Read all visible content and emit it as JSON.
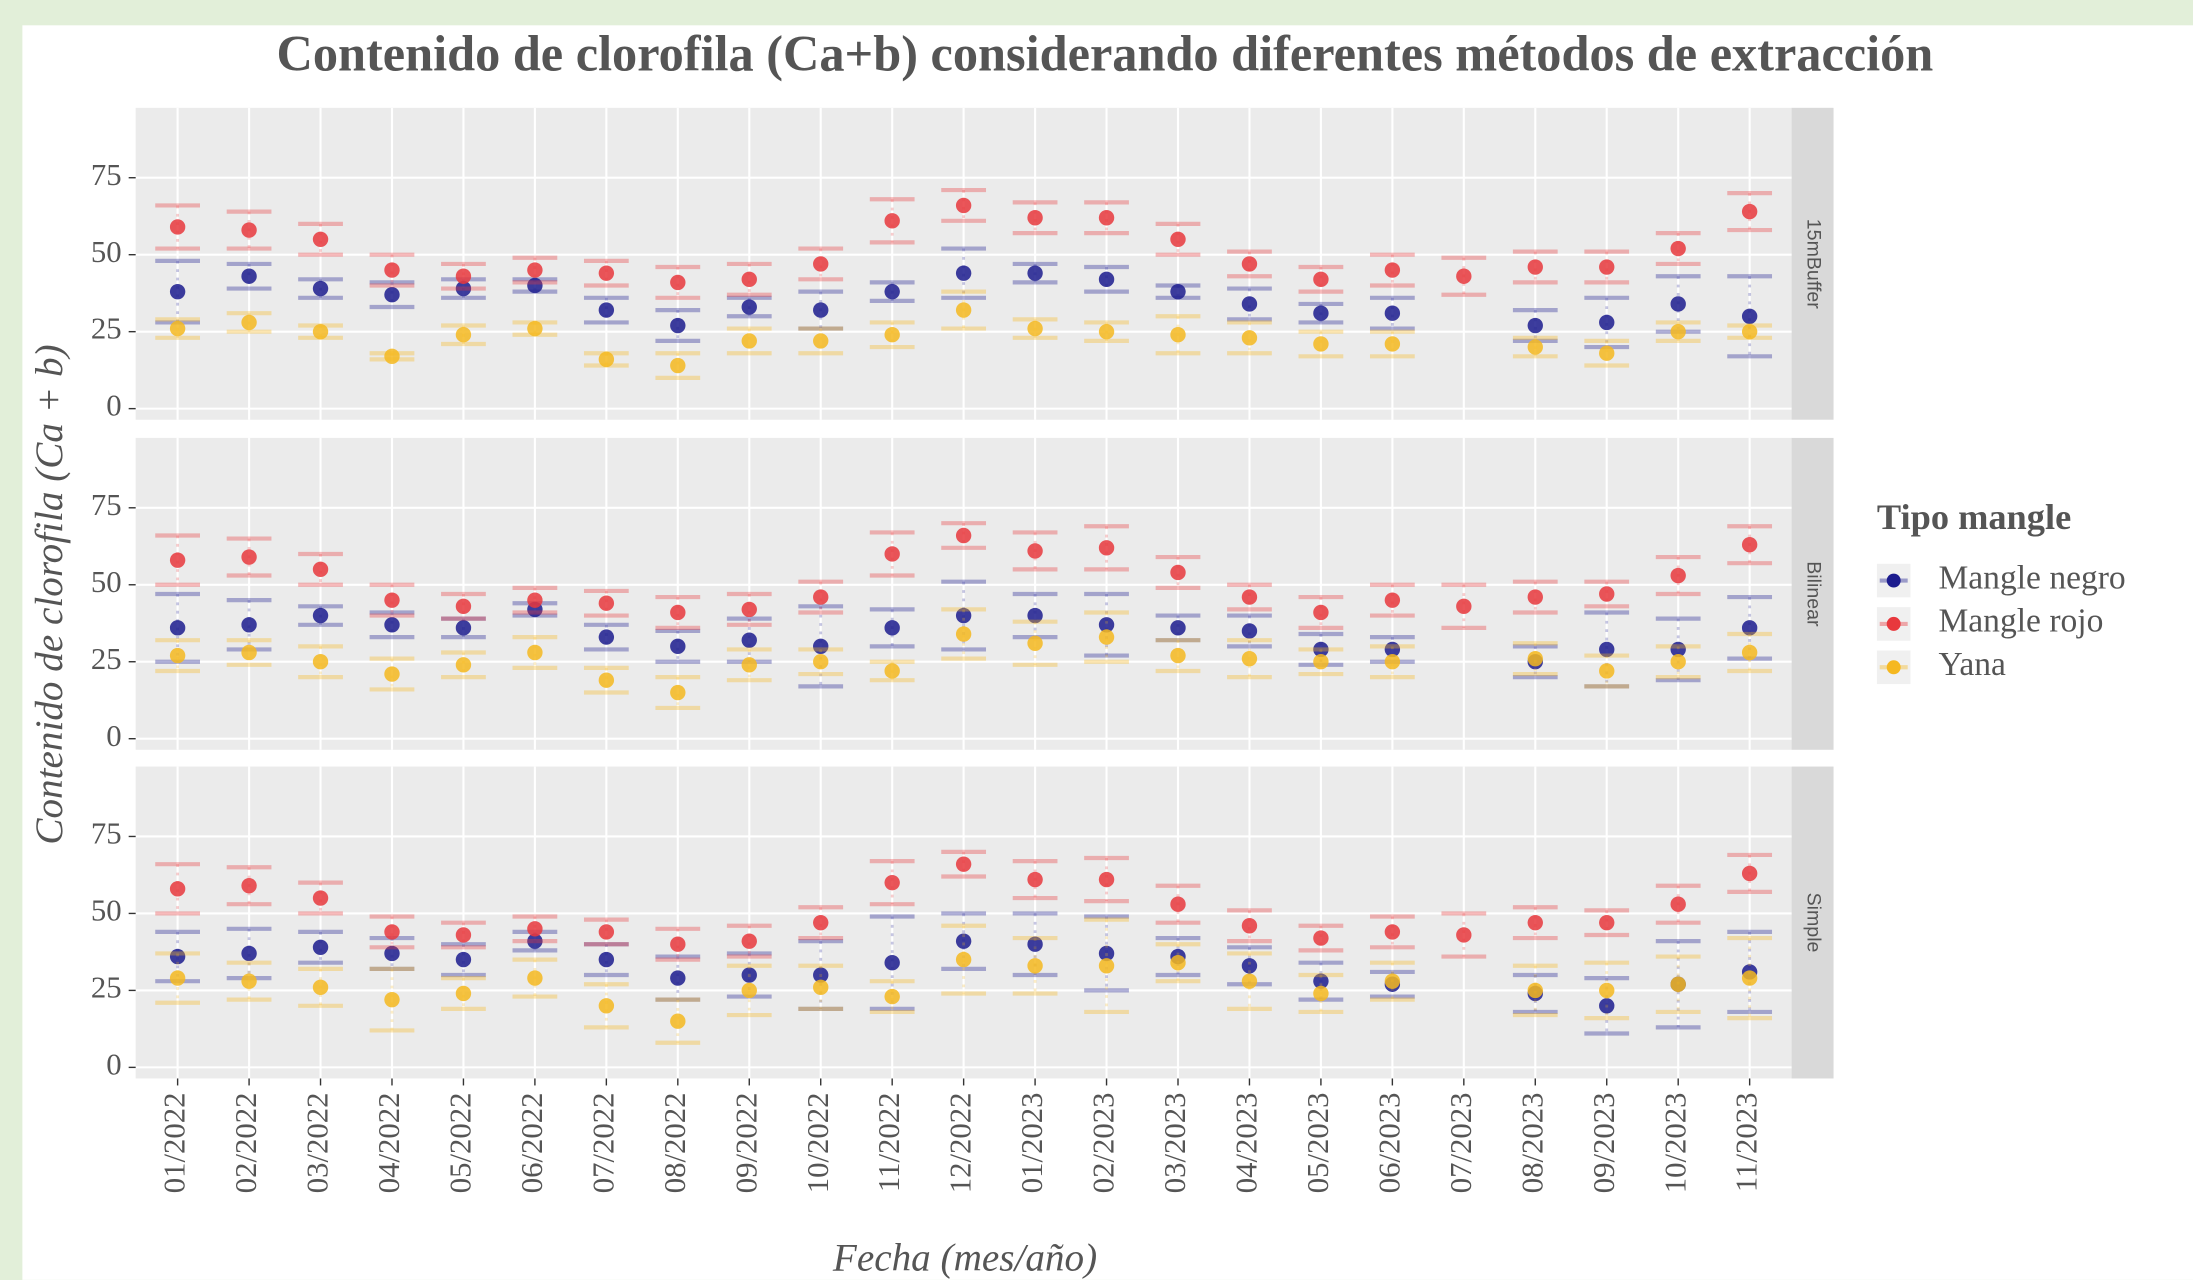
{
  "chart_data": {
    "type": "point",
    "title": "Contenido de clorofila (Ca+b) considerando diferentes métodos de extracción",
    "y_label": "Contenido de clorofila (Ca + b)",
    "x_label": "Fecha (mes/año)",
    "legend_title": "Tipo mangle",
    "categories": [
      "01/2022",
      "02/2022",
      "03/2022",
      "04/2022",
      "05/2022",
      "06/2022",
      "07/2022",
      "08/2022",
      "09/2022",
      "10/2022",
      "11/2022",
      "12/2022",
      "01/2023",
      "02/2023",
      "03/2023",
      "04/2023",
      "05/2023",
      "06/2023",
      "07/2023",
      "08/2023",
      "09/2023",
      "10/2023",
      "11/2023"
    ],
    "ylim": [
      -3.6,
      97.7
    ],
    "yticks": [
      0,
      25,
      50,
      75
    ],
    "grid": true,
    "panels": [
      {
        "label": "15mBuffer",
        "series": [
          {
            "name": "Mangle negro",
            "color": "#1c1c8e",
            "values": [
              38,
              43,
              39,
              37,
              39,
              40,
              32,
              27,
              33,
              32,
              38,
              44,
              44,
              42,
              38,
              34,
              31,
              31,
              null,
              27,
              28,
              34,
              30
            ],
            "errors": [
              10,
              4,
              3,
              4,
              3,
              2,
              4,
              5,
              3,
              6,
              3,
              8,
              3,
              4,
              2,
              5,
              3,
              5,
              null,
              5,
              8,
              9,
              13
            ]
          },
          {
            "name": "Mangle rojo",
            "color": "#e8383d",
            "values": [
              59,
              58,
              55,
              45,
              43,
              45,
              44,
              41,
              42,
              47,
              61,
              66,
              62,
              62,
              55,
              47,
              42,
              45,
              43,
              46,
              46,
              52,
              64
            ],
            "errors": [
              7,
              6,
              5,
              5,
              4,
              4,
              4,
              5,
              5,
              5,
              7,
              5,
              5,
              5,
              5,
              4,
              4,
              5,
              6,
              5,
              5,
              5,
              6
            ]
          },
          {
            "name": "Yana",
            "color": "#f5b820",
            "values": [
              26,
              28,
              25,
              17,
              24,
              26,
              16,
              14,
              22,
              22,
              24,
              32,
              26,
              25,
              24,
              23,
              21,
              21,
              null,
              20,
              18,
              25,
              25
            ],
            "errors": [
              3,
              3,
              2,
              1,
              3,
              2,
              2,
              4,
              4,
              4,
              4,
              6,
              3,
              3,
              6,
              5,
              4,
              4,
              null,
              3,
              4,
              3,
              2
            ]
          }
        ]
      },
      {
        "label": "Bilinear",
        "series": [
          {
            "name": "Mangle negro",
            "color": "#1c1c8e",
            "values": [
              36,
              37,
              40,
              37,
              36,
              42,
              33,
              30,
              32,
              30,
              36,
              40,
              40,
              37,
              36,
              35,
              29,
              29,
              null,
              25,
              29,
              29,
              36
            ],
            "errors": [
              11,
              8,
              3,
              4,
              3,
              2,
              4,
              5,
              7,
              13,
              6,
              11,
              7,
              10,
              4,
              5,
              5,
              4,
              null,
              5,
              12,
              10,
              10
            ]
          },
          {
            "name": "Mangle rojo",
            "color": "#e8383d",
            "values": [
              58,
              59,
              55,
              45,
              43,
              45,
              44,
              41,
              42,
              46,
              60,
              66,
              61,
              62,
              54,
              46,
              41,
              45,
              43,
              46,
              47,
              53,
              63
            ],
            "errors": [
              8,
              6,
              5,
              5,
              4,
              4,
              4,
              5,
              5,
              5,
              7,
              4,
              6,
              7,
              5,
              4,
              5,
              5,
              7,
              5,
              4,
              6,
              6
            ]
          },
          {
            "name": "Yana",
            "color": "#f5b820",
            "values": [
              27,
              28,
              25,
              21,
              24,
              28,
              19,
              15,
              24,
              25,
              22,
              34,
              31,
              33,
              27,
              26,
              25,
              25,
              null,
              26,
              22,
              25,
              28
            ],
            "errors": [
              5,
              4,
              5,
              5,
              4,
              5,
              4,
              5,
              5,
              4,
              3,
              8,
              7,
              8,
              5,
              6,
              4,
              5,
              null,
              5,
              5,
              5,
              6
            ]
          }
        ]
      },
      {
        "label": "Simple",
        "series": [
          {
            "name": "Mangle negro",
            "color": "#1c1c8e",
            "values": [
              36,
              37,
              39,
              37,
              35,
              41,
              35,
              29,
              30,
              30,
              34,
              41,
              40,
              37,
              36,
              33,
              28,
              27,
              null,
              24,
              20,
              27,
              31
            ],
            "errors": [
              8,
              8,
              5,
              5,
              5,
              3,
              5,
              7,
              7,
              11,
              15,
              9,
              10,
              12,
              6,
              6,
              6,
              4,
              null,
              6,
              9,
              14,
              13
            ]
          },
          {
            "name": "Mangle rojo",
            "color": "#e8383d",
            "values": [
              58,
              59,
              55,
              44,
              43,
              45,
              44,
              40,
              41,
              47,
              60,
              66,
              61,
              61,
              53,
              46,
              42,
              44,
              43,
              47,
              47,
              53,
              63
            ],
            "errors": [
              8,
              6,
              5,
              5,
              4,
              4,
              4,
              5,
              5,
              5,
              7,
              4,
              6,
              7,
              6,
              5,
              4,
              5,
              7,
              5,
              4,
              6,
              6
            ]
          },
          {
            "name": "Yana",
            "color": "#f5b820",
            "values": [
              29,
              28,
              26,
              22,
              24,
              29,
              20,
              15,
              25,
              26,
              23,
              35,
              33,
              33,
              34,
              28,
              24,
              28,
              null,
              25,
              25,
              27,
              29
            ],
            "errors": [
              8,
              6,
              6,
              10,
              5,
              6,
              7,
              7,
              8,
              7,
              5,
              11,
              9,
              15,
              6,
              9,
              6,
              6,
              null,
              8,
              9,
              9,
              13
            ]
          }
        ]
      }
    ]
  }
}
